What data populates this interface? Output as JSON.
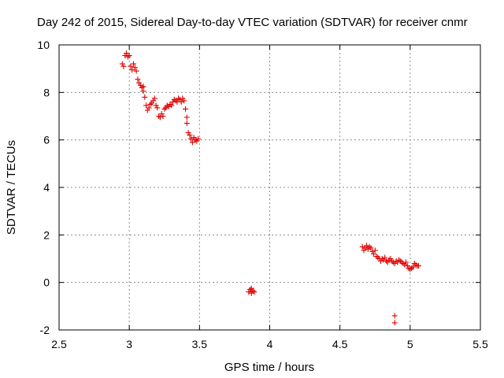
{
  "chart_data": {
    "type": "scatter",
    "title": "Day 242 of 2015, Sidereal Day-to-day VTEC variation (SDTVAR) for receiver cnmr",
    "xlabel": "GPS time / hours",
    "ylabel": "SDTVAR / TECUs",
    "xlim": [
      2.5,
      5.5
    ],
    "ylim": [
      -2,
      10
    ],
    "xticks": [
      "2.5",
      "3",
      "3.5",
      "4",
      "4.5",
      "5",
      "5.5"
    ],
    "yticks": [
      "-2",
      "0",
      "2",
      "4",
      "6",
      "8",
      "10"
    ],
    "grid": true,
    "marker": "+",
    "color": "#e00000",
    "series": [
      {
        "name": "SDTVAR",
        "points": [
          [
            2.95,
            9.2
          ],
          [
            2.96,
            9.1
          ],
          [
            2.97,
            9.55
          ],
          [
            2.98,
            9.65
          ],
          [
            2.99,
            9.5
          ],
          [
            3.0,
            9.55
          ],
          [
            3.01,
            9.1
          ],
          [
            3.02,
            8.95
          ],
          [
            3.03,
            9.2
          ],
          [
            3.04,
            9.05
          ],
          [
            3.05,
            8.9
          ],
          [
            3.06,
            8.55
          ],
          [
            3.07,
            8.4
          ],
          [
            3.08,
            8.3
          ],
          [
            3.09,
            8.2
          ],
          [
            3.1,
            8.05
          ],
          [
            3.1,
            8.25
          ],
          [
            3.11,
            7.8
          ],
          [
            3.12,
            7.45
          ],
          [
            3.13,
            7.25
          ],
          [
            3.14,
            7.35
          ],
          [
            3.15,
            7.5
          ],
          [
            3.16,
            7.55
          ],
          [
            3.17,
            7.65
          ],
          [
            3.18,
            7.75
          ],
          [
            3.19,
            7.45
          ],
          [
            3.2,
            7.35
          ],
          [
            3.21,
            7.0
          ],
          [
            3.22,
            6.95
          ],
          [
            3.23,
            7.1
          ],
          [
            3.24,
            7.0
          ],
          [
            3.25,
            7.3
          ],
          [
            3.26,
            7.35
          ],
          [
            3.27,
            7.45
          ],
          [
            3.28,
            7.4
          ],
          [
            3.29,
            7.5
          ],
          [
            3.3,
            7.45
          ],
          [
            3.31,
            7.6
          ],
          [
            3.32,
            7.7
          ],
          [
            3.33,
            7.65
          ],
          [
            3.34,
            7.6
          ],
          [
            3.35,
            7.75
          ],
          [
            3.36,
            7.7
          ],
          [
            3.37,
            7.6
          ],
          [
            3.38,
            7.75
          ],
          [
            3.39,
            7.65
          ],
          [
            3.4,
            7.3
          ],
          [
            3.41,
            6.95
          ],
          [
            3.41,
            6.7
          ],
          [
            3.42,
            6.3
          ],
          [
            3.43,
            6.2
          ],
          [
            3.44,
            6.05
          ],
          [
            3.45,
            5.9
          ],
          [
            3.46,
            6.1
          ],
          [
            3.47,
            6.0
          ],
          [
            3.48,
            5.95
          ],
          [
            3.49,
            6.05
          ],
          [
            3.85,
            -0.4
          ],
          [
            3.86,
            -0.3
          ],
          [
            3.87,
            -0.25
          ],
          [
            3.87,
            -0.45
          ],
          [
            3.88,
            -0.35
          ],
          [
            3.89,
            -0.4
          ],
          [
            4.66,
            1.5
          ],
          [
            4.67,
            1.35
          ],
          [
            4.68,
            1.45
          ],
          [
            4.69,
            1.55
          ],
          [
            4.7,
            1.4
          ],
          [
            4.71,
            1.5
          ],
          [
            4.72,
            1.45
          ],
          [
            4.73,
            1.3
          ],
          [
            4.74,
            1.2
          ],
          [
            4.75,
            1.35
          ],
          [
            4.76,
            1.1
          ],
          [
            4.77,
            1.05
          ],
          [
            4.78,
            1.0
          ],
          [
            4.79,
            0.9
          ],
          [
            4.8,
            1.0
          ],
          [
            4.81,
            0.95
          ],
          [
            4.82,
            1.05
          ],
          [
            4.83,
            0.9
          ],
          [
            4.84,
            0.85
          ],
          [
            4.85,
            0.95
          ],
          [
            4.86,
            1.0
          ],
          [
            4.87,
            0.9
          ],
          [
            4.88,
            0.85
          ],
          [
            4.89,
            0.8
          ],
          [
            4.9,
            0.9
          ],
          [
            4.91,
            0.85
          ],
          [
            4.92,
            0.95
          ],
          [
            4.93,
            0.9
          ],
          [
            4.94,
            0.85
          ],
          [
            4.95,
            0.8
          ],
          [
            4.96,
            0.75
          ],
          [
            4.97,
            0.85
          ],
          [
            4.98,
            0.7
          ],
          [
            4.99,
            0.6
          ],
          [
            5.0,
            0.55
          ],
          [
            5.01,
            0.6
          ],
          [
            5.02,
            0.65
          ],
          [
            5.03,
            0.8
          ],
          [
            5.04,
            0.75
          ],
          [
            5.05,
            0.7
          ],
          [
            5.06,
            0.7
          ],
          [
            4.89,
            -1.4
          ],
          [
            4.89,
            -1.7
          ]
        ]
      }
    ]
  }
}
